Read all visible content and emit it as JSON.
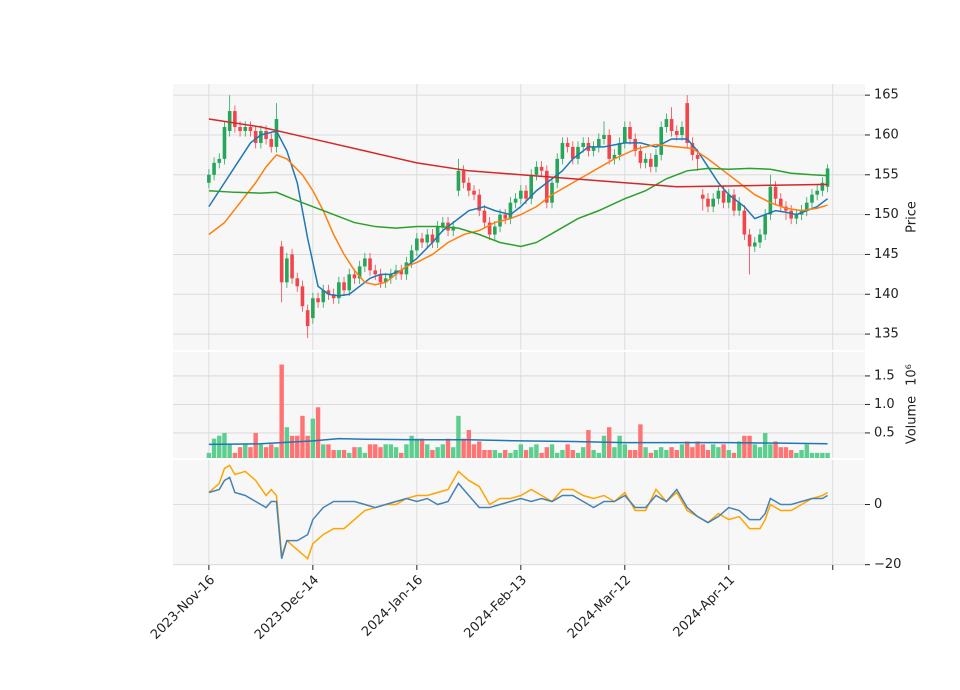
{
  "chart_data": [
    {
      "type": "candlestick",
      "y_label": "Price",
      "up_color": "#26a65b",
      "down_color": "#f0464b",
      "xlim": [
        -6.9,
        126.2
      ],
      "xticks": [
        {
          "value": 0,
          "label": "2023-Nov-16"
        },
        {
          "value": 20,
          "label": "2023-Dec-14"
        },
        {
          "value": 40,
          "label": "2024-Jan-16"
        },
        {
          "value": 60,
          "label": "2024-Feb-13"
        },
        {
          "value": 80,
          "label": "2024-Mar-12"
        },
        {
          "value": 100,
          "label": "2024-Apr-11"
        },
        {
          "value": 120,
          "label": null
        }
      ],
      "ylim": [
        133,
        166.4
      ],
      "yticks": [
        135,
        140,
        145,
        150,
        155,
        160,
        165
      ],
      "grid": true,
      "open": [
        154,
        155,
        156.5,
        157,
        160.5,
        163,
        161,
        160.5,
        161,
        160.5,
        159,
        160.5,
        159.5,
        158.5,
        146,
        141.5,
        145,
        142,
        141,
        138,
        137,
        139.5,
        139,
        140.5,
        140,
        139.5,
        141.5,
        140.5,
        142.5,
        142,
        143.5,
        144.5,
        143,
        142.5,
        141.5,
        142,
        142.5,
        143,
        142.5,
        144,
        145.5,
        147,
        146.5,
        147.5,
        146.5,
        148.5,
        149,
        148,
        153,
        155.5,
        154,
        153,
        152.5,
        150.5,
        149,
        147.5,
        148.5,
        150,
        149.5,
        151.5,
        152,
        153,
        152,
        155,
        156,
        155.5,
        151.5,
        154,
        157,
        159,
        158.5,
        157,
        158.5,
        159,
        158,
        158.5,
        159.5,
        160,
        157,
        157.5,
        159,
        161,
        159.5,
        158,
        156.5,
        157,
        156,
        157.5,
        161,
        162,
        160.5,
        160,
        164,
        159,
        157.5,
        152.5,
        152,
        151,
        152,
        153,
        151.5,
        152.5,
        150.5,
        150.5,
        147.5,
        146,
        146.5,
        147.5,
        150,
        153.5,
        152,
        151,
        150.5,
        149.5,
        150,
        150.5,
        151.5,
        152.5,
        153,
        153.5
      ],
      "high": [
        155.7,
        157.2,
        157.7,
        161.7,
        165,
        163.7,
        161.7,
        161.7,
        161.7,
        161.2,
        161.2,
        161.2,
        160.2,
        164,
        146.7,
        145.2,
        145.7,
        142.7,
        141.7,
        138.7,
        140.2,
        140.2,
        141.2,
        141.2,
        140.7,
        142.2,
        142.2,
        143.2,
        143.2,
        144.2,
        145.2,
        145.2,
        143.7,
        143.2,
        142.7,
        143.2,
        143.7,
        143.7,
        144.7,
        146.2,
        147.7,
        147.7,
        148.2,
        148.2,
        149.2,
        149.7,
        149.7,
        149.2,
        157,
        156.2,
        154.7,
        153.7,
        153.2,
        151.2,
        149.7,
        149.2,
        150.7,
        150.7,
        152.2,
        152.7,
        153.7,
        153.7,
        155.7,
        156.7,
        156.7,
        156.2,
        154.7,
        157.7,
        159.7,
        159.7,
        159.2,
        159.2,
        159.7,
        159.7,
        159.2,
        160.2,
        161.7,
        160.7,
        158.2,
        159.7,
        161.7,
        161.7,
        160.2,
        158.7,
        157.7,
        157.7,
        158.2,
        161.7,
        162.7,
        163.5,
        161.2,
        161.7,
        165,
        159.7,
        158.2,
        153.2,
        152.7,
        152.7,
        153.7,
        153.7,
        153.2,
        153.2,
        152.2,
        151.2,
        148.2,
        147.2,
        148.2,
        150.7,
        155,
        154.2,
        152.7,
        151.7,
        151.2,
        150.7,
        151.2,
        152.2,
        153.2,
        153.7,
        154.7,
        156.3
      ],
      "low": [
        153.3,
        154.3,
        155.8,
        156.3,
        159.8,
        160.3,
        159.8,
        159.8,
        159.8,
        158.3,
        158.3,
        158.8,
        157.8,
        157.8,
        139,
        140.8,
        141.3,
        140.3,
        137.8,
        134.5,
        136.3,
        138.3,
        138.3,
        139.3,
        138.8,
        138.8,
        139.8,
        139.8,
        141.3,
        141.3,
        142.8,
        142.3,
        141.8,
        140.8,
        140.8,
        141.3,
        141.8,
        141.8,
        141.8,
        143.3,
        144.8,
        145.8,
        145.8,
        145.8,
        145.8,
        147.8,
        147.3,
        147.3,
        152.3,
        153.3,
        152.3,
        151.8,
        149.8,
        148.3,
        146.8,
        146.8,
        147.8,
        148.8,
        148.8,
        150.8,
        151.3,
        151.3,
        151.3,
        154.3,
        154.8,
        150.8,
        150.8,
        153.3,
        156.3,
        157.8,
        156.3,
        156.3,
        157.8,
        157.3,
        157.3,
        157.8,
        158.8,
        156.3,
        156.3,
        156.8,
        158.3,
        158.8,
        157.3,
        155.8,
        155.8,
        155.3,
        155.3,
        156.8,
        160.3,
        159.8,
        159.3,
        159.3,
        158.3,
        156.8,
        155.5,
        150.5,
        150.3,
        150.3,
        151.3,
        150.8,
        150.8,
        149.8,
        149.8,
        146.8,
        142.5,
        145.3,
        145.8,
        146.8,
        149.3,
        151.3,
        150.3,
        149.3,
        148.8,
        148.8,
        149.3,
        149.8,
        150.8,
        151.8,
        152.3,
        152.8
      ],
      "close": [
        155,
        156.5,
        157,
        161,
        163,
        161,
        160.5,
        161,
        160.5,
        159,
        160.5,
        159.5,
        158.5,
        162,
        141.5,
        144.5,
        142,
        141,
        138.5,
        136,
        139.5,
        139,
        140.5,
        140,
        139.5,
        141.5,
        140.5,
        142.5,
        142,
        143.5,
        144.5,
        143,
        142.5,
        141.5,
        142,
        142.5,
        143,
        142.5,
        144,
        145.5,
        147,
        146.5,
        147.5,
        146.5,
        148.5,
        149,
        148,
        148.5,
        155.5,
        154,
        153,
        152.5,
        150.5,
        149,
        147.5,
        148.5,
        150,
        149.5,
        151.5,
        152,
        153,
        152,
        155,
        156,
        155.5,
        151.5,
        154,
        157,
        159,
        158.5,
        157,
        158.5,
        159,
        158,
        158.5,
        159.5,
        160,
        157,
        157.5,
        159,
        161,
        159.5,
        158,
        156.5,
        157,
        156,
        157.5,
        161,
        162,
        160.5,
        160,
        161,
        159,
        157.5,
        157,
        152,
        151,
        152,
        153,
        151.5,
        152.5,
        150.5,
        151.5,
        147.5,
        146,
        146.5,
        147.5,
        150,
        153.5,
        152,
        151,
        150.5,
        149.5,
        150,
        150.5,
        151.5,
        152.5,
        153,
        154,
        155.8
      ],
      "series": [
        {
          "color": "#1f77b4",
          "x": [
            0,
            3,
            5,
            8,
            10,
            13,
            15,
            17,
            19,
            21,
            23,
            25,
            27,
            29,
            31,
            33,
            35,
            37,
            40,
            43,
            45,
            48,
            50,
            53,
            55,
            58,
            60,
            63,
            65,
            68,
            70,
            73,
            76,
            80,
            83,
            86,
            89,
            92,
            94,
            96,
            98,
            100,
            103,
            105,
            107,
            109,
            111,
            113,
            115,
            117,
            119
          ],
          "values": [
            151,
            154,
            156,
            159,
            160,
            160.5,
            158,
            154,
            147,
            141,
            140,
            139.8,
            140,
            141,
            142,
            142.5,
            142.5,
            143,
            144.5,
            146.5,
            148,
            149.5,
            150.5,
            151,
            150.5,
            150,
            151,
            153,
            154,
            155.5,
            157,
            158.5,
            158.5,
            159,
            159,
            158.5,
            159.5,
            159.5,
            158,
            156,
            154,
            152.5,
            151,
            149.5,
            150,
            150.5,
            150.3,
            150,
            150.5,
            151,
            152
          ]
        },
        {
          "color": "#ff7f0e",
          "x": [
            0,
            3,
            6,
            9,
            11,
            13,
            15,
            18,
            20,
            22,
            24,
            26,
            28,
            30,
            32,
            34,
            36,
            38,
            40,
            43,
            46,
            49,
            52,
            55,
            58,
            60,
            63,
            66,
            70,
            74,
            78,
            82,
            86,
            90,
            93,
            96,
            99,
            102,
            105,
            108,
            111,
            114,
            117,
            119
          ],
          "values": [
            147.5,
            149,
            151.5,
            154,
            156,
            157.5,
            157,
            155,
            153,
            150.5,
            147.5,
            145,
            143,
            141.5,
            141.2,
            141.5,
            142.5,
            143.5,
            144,
            145,
            146.5,
            147.5,
            148,
            149,
            149.5,
            150,
            151,
            152.5,
            154,
            155.5,
            157,
            158.2,
            158.8,
            158.5,
            158.3,
            157,
            155.5,
            154,
            152.5,
            151.5,
            150.8,
            150.5,
            150.8,
            151.2
          ]
        },
        {
          "color": "#2ca02c",
          "x": [
            0,
            5,
            10,
            13,
            16,
            20,
            24,
            28,
            32,
            36,
            40,
            44,
            48,
            52,
            56,
            60,
            63,
            67,
            71,
            75,
            80,
            84,
            88,
            92,
            96,
            100,
            104,
            108,
            112,
            116,
            119
          ],
          "values": [
            153,
            152.8,
            152.7,
            152.8,
            152,
            151,
            150,
            149,
            148.5,
            148.3,
            148.5,
            148.5,
            148.3,
            147.5,
            146.5,
            146,
            146.5,
            148,
            149.5,
            150.5,
            152,
            153,
            154.5,
            155.5,
            155.8,
            155.7,
            155.8,
            155.7,
            155.2,
            155,
            154.9
          ]
        },
        {
          "color": "#d62728",
          "x": [
            0,
            10,
            20,
            30,
            40,
            50,
            60,
            70,
            80,
            90,
            100,
            110,
            119
          ],
          "values": [
            162,
            161,
            159.5,
            158,
            156.5,
            155.5,
            155,
            154.5,
            154,
            153.5,
            153.6,
            153.7,
            153.8
          ]
        }
      ]
    },
    {
      "type": "bar",
      "y_label": "Volume",
      "y_offset": "10⁶",
      "up_color": "#5ccf8e",
      "down_color": "#ff7373",
      "ylim": [
        0.06,
        1.92
      ],
      "yticks": [
        0.5,
        {
          "value": 1,
          "label": "1.0"
        },
        1.5
      ],
      "grid": true,
      "values": [
        0.15,
        0.4,
        0.45,
        0.5,
        0.3,
        0.15,
        0.25,
        0.3,
        0.25,
        0.5,
        0.3,
        0.25,
        0.3,
        0.25,
        1.7,
        0.6,
        0.45,
        0.45,
        0.8,
        0.45,
        0.75,
        0.95,
        0.3,
        0.3,
        0.2,
        0.2,
        0.2,
        0.15,
        0.25,
        0.25,
        0.15,
        0.3,
        0.3,
        0.25,
        0.3,
        0.3,
        0.25,
        0.15,
        0.3,
        0.45,
        0.4,
        0.4,
        0.3,
        0.2,
        0.25,
        0.3,
        0.4,
        0.25,
        0.8,
        0.4,
        0.55,
        0.3,
        0.35,
        0.2,
        0.2,
        0.2,
        0.15,
        0.2,
        0.15,
        0.2,
        0.3,
        0.2,
        0.25,
        0.3,
        0.15,
        0.25,
        0.3,
        0.15,
        0.2,
        0.3,
        0.2,
        0.15,
        0.25,
        0.55,
        0.2,
        0.15,
        0.45,
        0.6,
        0.25,
        0.45,
        0.3,
        0.2,
        0.2,
        0.65,
        0.25,
        0.15,
        0.2,
        0.25,
        0.2,
        0.25,
        0.2,
        0.3,
        0.35,
        0.25,
        0.35,
        0.3,
        0.2,
        0.3,
        0.25,
        0.3,
        0.2,
        0.15,
        0.35,
        0.45,
        0.45,
        0.3,
        0.25,
        0.5,
        0.3,
        0.35,
        0.25,
        0.25,
        0.2,
        0.15,
        0.2,
        0.3,
        0.15,
        0.15,
        0.15,
        0.15
      ],
      "series": [
        {
          "color": "#1f77b4",
          "x": [
            0,
            10,
            20,
            25,
            30,
            40,
            50,
            60,
            70,
            80,
            90,
            100,
            110,
            119
          ],
          "values": [
            0.3,
            0.31,
            0.36,
            0.4,
            0.39,
            0.38,
            0.38,
            0.36,
            0.35,
            0.33,
            0.33,
            0.33,
            0.32,
            0.31
          ]
        }
      ]
    },
    {
      "type": "line",
      "ylim": [
        -20.1,
        14.8
      ],
      "yticks": [
        {
          "value": -20,
          "label": "−20"
        },
        0
      ],
      "grid": true,
      "x": [
        0,
        2,
        3,
        4,
        5,
        7,
        9,
        11,
        12,
        13,
        14,
        15,
        17,
        19,
        20,
        22,
        24,
        26,
        28,
        30,
        32,
        34,
        36,
        38,
        40,
        42,
        44,
        46,
        48,
        50,
        52,
        54,
        56,
        58,
        60,
        62,
        64,
        66,
        68,
        70,
        72,
        74,
        76,
        78,
        80,
        82,
        84,
        86,
        88,
        90,
        92,
        94,
        96,
        98,
        100,
        102,
        104,
        106,
        107,
        108,
        110,
        112,
        114,
        116,
        118,
        119
      ],
      "series": [
        {
          "color": "#ffa500",
          "values": [
            4,
            7,
            12,
            13,
            10,
            11,
            8,
            3,
            5,
            3,
            -17,
            -12,
            -15,
            -18,
            -13,
            -10,
            -8,
            -8,
            -5,
            -2,
            -1,
            0,
            0,
            2,
            3,
            3,
            4,
            5,
            11,
            8,
            6,
            0,
            2,
            2,
            3,
            5,
            3,
            1,
            5,
            5,
            3,
            2,
            3,
            1,
            4,
            -2,
            -2,
            5,
            1,
            4,
            -2,
            -4,
            -6,
            -3,
            -5,
            -4,
            -8,
            -8,
            -5,
            0,
            -2,
            -2,
            0,
            2,
            3,
            4
          ]
        },
        {
          "color": "#4682b4",
          "values": [
            4,
            5,
            8,
            9,
            4,
            3,
            1,
            -1,
            1,
            1,
            -18,
            -12,
            -12,
            -10,
            -5,
            -1,
            1,
            1,
            1,
            0,
            -1,
            0,
            1,
            2,
            1,
            2,
            0,
            1,
            7,
            3,
            -1,
            -1,
            0,
            1,
            2,
            1,
            2,
            1,
            3,
            3,
            1,
            -1,
            1,
            1,
            3,
            -1,
            -1,
            3,
            1,
            5,
            -1,
            -4,
            -6,
            -4,
            -1,
            -2,
            -5,
            -5,
            -3,
            2,
            0,
            0,
            1,
            2,
            2,
            3
          ]
        }
      ]
    }
  ]
}
